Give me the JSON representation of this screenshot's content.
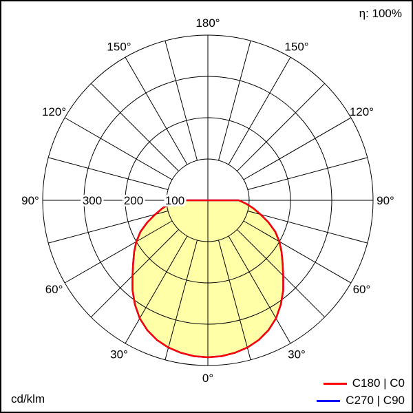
{
  "header": {
    "efficiency": "η: 100%"
  },
  "footer": {
    "unit": "cd/klm"
  },
  "legend": [
    {
      "label": "C180 | C0",
      "color": "#ff0000"
    },
    {
      "label": "C270 | C90",
      "color": "#0000ff"
    }
  ],
  "chart_data": {
    "type": "polar",
    "subtype": "luminous-intensity-distribution",
    "unit": "cd/klm",
    "efficiency_percent": 100,
    "gamma_zero_position": "bottom",
    "radial_max": 400,
    "rings": [
      100,
      200,
      300,
      400
    ],
    "ring_label_values": [
      "300",
      "200",
      "100"
    ],
    "spoke_step_deg": 15,
    "angle_labels_deg": [
      0,
      30,
      60,
      90,
      120,
      150,
      180
    ],
    "angle_label_suffix": "°",
    "grid": true,
    "legend_position": "bottom-right",
    "series": [
      {
        "name": "C270 | C90",
        "color": "#0000ff",
        "fill": "none",
        "symmetric": true,
        "gamma_deg": [
          0,
          5,
          10,
          15,
          20,
          25,
          30,
          35,
          40,
          45,
          50,
          55,
          60,
          65,
          70,
          75,
          80,
          85,
          90
        ],
        "values": [
          380,
          379,
          375,
          369,
          360,
          347,
          330,
          308,
          284,
          258,
          236,
          218,
          200,
          180,
          156,
          132,
          112,
          93,
          75
        ]
      },
      {
        "name": "C180 | C0",
        "color": "#ff0000",
        "fill": "#ffffa8",
        "symmetric": true,
        "gamma_deg": [
          0,
          5,
          10,
          15,
          20,
          25,
          30,
          35,
          40,
          45,
          50,
          55,
          60,
          65,
          70,
          75,
          80,
          85,
          90
        ],
        "values": [
          380,
          379,
          375,
          369,
          360,
          347,
          330,
          308,
          284,
          258,
          236,
          218,
          200,
          180,
          156,
          132,
          112,
          93,
          75
        ]
      }
    ]
  }
}
